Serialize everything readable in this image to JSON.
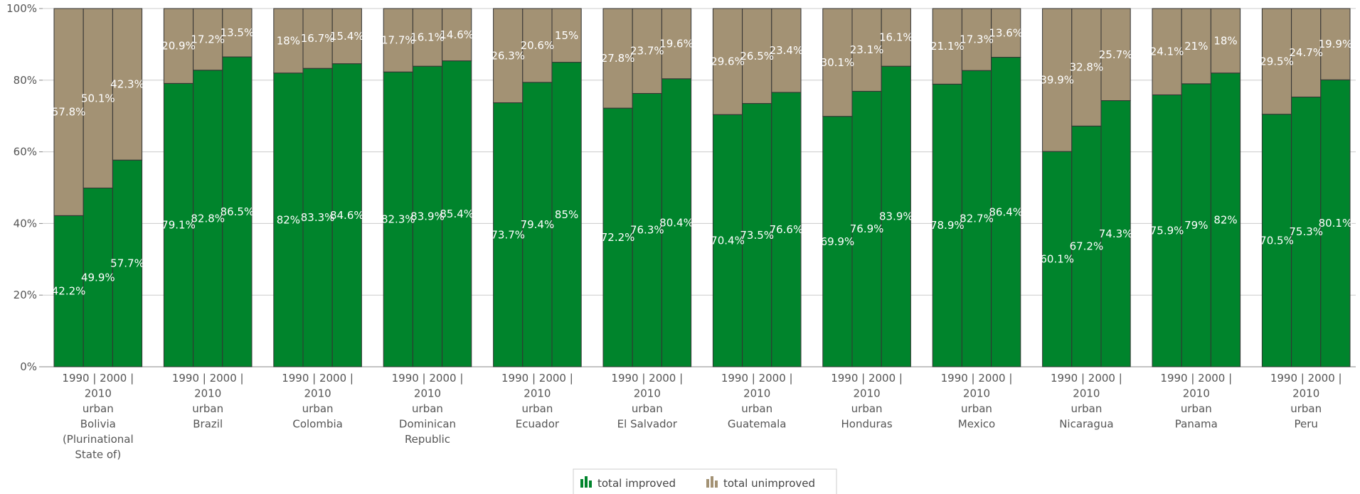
{
  "chart_data": {
    "type": "bar",
    "stacked": true,
    "percent": true,
    "ylim": [
      0,
      100
    ],
    "y_ticks": [
      "0%",
      "20%",
      "40%",
      "60%",
      "80%",
      "100%"
    ],
    "grid": true,
    "legend_position": "bottom-center",
    "colors": {
      "improved": "#00842c",
      "unimproved": "#a39274"
    },
    "groups": [
      {
        "label": [
          "1990 | 2000 |",
          "2010",
          "urban",
          "Bolivia",
          "(Plurinational",
          "State of)"
        ],
        "improved": [
          42.2,
          49.9,
          57.7
        ],
        "unimproved": [
          57.8,
          50.1,
          42.3
        ],
        "improved_labels": [
          "42.2%",
          "49.9%",
          "57.7%"
        ],
        "unimproved_labels": [
          "57.8%",
          "50.1%",
          "42.3%"
        ]
      },
      {
        "label": [
          "1990 | 2000 |",
          "2010",
          "urban",
          "Brazil"
        ],
        "improved": [
          79.1,
          82.8,
          86.5
        ],
        "unimproved": [
          20.9,
          17.2,
          13.5
        ],
        "improved_labels": [
          "79.1%",
          "82.8%",
          "86.5%"
        ],
        "unimproved_labels": [
          "20.9%",
          "17.2%",
          "13.5%"
        ]
      },
      {
        "label": [
          "1990 | 2000 |",
          "2010",
          "urban",
          "Colombia"
        ],
        "improved": [
          82,
          83.3,
          84.6
        ],
        "unimproved": [
          18,
          16.7,
          15.4
        ],
        "improved_labels": [
          "82%",
          "83.3%",
          "84.6%"
        ],
        "unimproved_labels": [
          "18%",
          "16.7%",
          "15.4%"
        ]
      },
      {
        "label": [
          "1990 | 2000 |",
          "2010",
          "urban",
          "Dominican",
          "Republic"
        ],
        "improved": [
          82.3,
          83.9,
          85.4
        ],
        "unimproved": [
          17.7,
          16.1,
          14.6
        ],
        "improved_labels": [
          "82.3%",
          "83.9%",
          "85.4%"
        ],
        "unimproved_labels": [
          "17.7%",
          "16.1%",
          "14.6%"
        ]
      },
      {
        "label": [
          "1990 | 2000 |",
          "2010",
          "urban",
          "Ecuador"
        ],
        "improved": [
          73.7,
          79.4,
          85
        ],
        "unimproved": [
          26.3,
          20.6,
          15
        ],
        "improved_labels": [
          "73.7%",
          "79.4%",
          "85%"
        ],
        "unimproved_labels": [
          "26.3%",
          "20.6%",
          "15%"
        ]
      },
      {
        "label": [
          "1990 | 2000 |",
          "2010",
          "urban",
          "El Salvador"
        ],
        "improved": [
          72.2,
          76.3,
          80.4
        ],
        "unimproved": [
          27.8,
          23.7,
          19.6
        ],
        "improved_labels": [
          "72.2%",
          "76.3%",
          "80.4%"
        ],
        "unimproved_labels": [
          "27.8%",
          "23.7%",
          "19.6%"
        ]
      },
      {
        "label": [
          "1990 | 2000 |",
          "2010",
          "urban",
          "Guatemala"
        ],
        "improved": [
          70.4,
          73.5,
          76.6
        ],
        "unimproved": [
          29.6,
          26.5,
          23.4
        ],
        "improved_labels": [
          "70.4%",
          "73.5%",
          "76.6%"
        ],
        "unimproved_labels": [
          "29.6%",
          "26.5%",
          "23.4%"
        ]
      },
      {
        "label": [
          "1990 | 2000 |",
          "2010",
          "urban",
          "Honduras"
        ],
        "improved": [
          69.9,
          76.9,
          83.9
        ],
        "unimproved": [
          30.1,
          23.1,
          16.1
        ],
        "improved_labels": [
          "69.9%",
          "76.9%",
          "83.9%"
        ],
        "unimproved_labels": [
          "30.1%",
          "23.1%",
          "16.1%"
        ]
      },
      {
        "label": [
          "1990 | 2000 |",
          "2010",
          "urban",
          "Mexico"
        ],
        "improved": [
          78.9,
          82.7,
          86.4
        ],
        "unimproved": [
          21.1,
          17.3,
          13.6
        ],
        "improved_labels": [
          "78.9%",
          "82.7%",
          "86.4%"
        ],
        "unimproved_labels": [
          "21.1%",
          "17.3%",
          "13.6%"
        ]
      },
      {
        "label": [
          "1990 | 2000 |",
          "2010",
          "urban",
          "Nicaragua"
        ],
        "improved": [
          60.1,
          67.2,
          74.3
        ],
        "unimproved": [
          39.9,
          32.8,
          25.7
        ],
        "improved_labels": [
          "60.1%",
          "67.2%",
          "74.3%"
        ],
        "unimproved_labels": [
          "39.9%",
          "32.8%",
          "25.7%"
        ]
      },
      {
        "label": [
          "1990 | 2000 |",
          "2010",
          "urban",
          "Panama"
        ],
        "improved": [
          75.9,
          79,
          82
        ],
        "unimproved": [
          24.1,
          21,
          18
        ],
        "improved_labels": [
          "75.9%",
          "79%",
          "82%"
        ],
        "unimproved_labels": [
          "24.1%",
          "21%",
          "18%"
        ]
      },
      {
        "label": [
          "1990 | 2000 |",
          "2010",
          "urban",
          "Peru"
        ],
        "improved": [
          70.5,
          75.3,
          80.1
        ],
        "unimproved": [
          29.5,
          24.7,
          19.9
        ],
        "improved_labels": [
          "70.5%",
          "75.3%",
          "80.1%"
        ],
        "unimproved_labels": [
          "29.5%",
          "24.7%",
          "19.9%"
        ]
      }
    ],
    "series": [
      {
        "name": "total improved",
        "icon": "improved-bar-icon"
      },
      {
        "name": "total unimproved",
        "icon": "unimproved-bar-icon"
      }
    ]
  }
}
